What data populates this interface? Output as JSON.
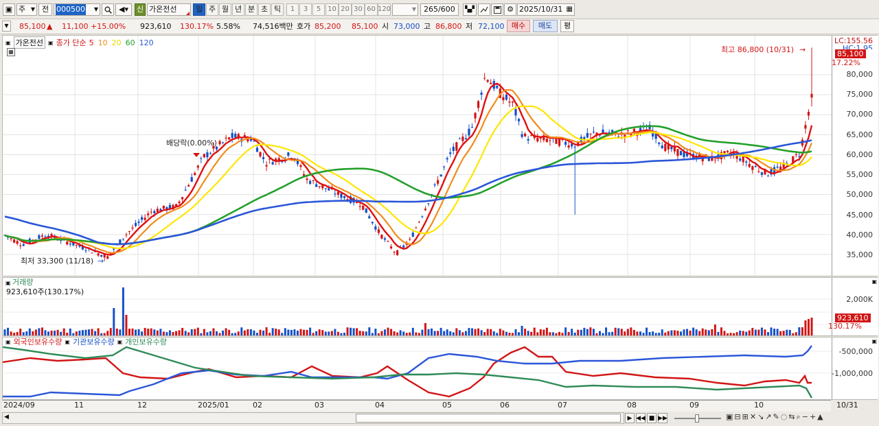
{
  "toolbar": {
    "period_type": "주",
    "jeon": "전",
    "code": "000500",
    "new_label": "신",
    "stock_name": "가온전선",
    "timeframes": [
      "일",
      "주",
      "월",
      "년",
      "분",
      "초",
      "틱"
    ],
    "minutes": [
      "1",
      "3",
      "5",
      "10",
      "20",
      "30",
      "60",
      "120"
    ],
    "count": "265",
    "count_total": "/600",
    "date": "2025/10/31"
  },
  "quote": {
    "price": "85,100",
    "change": "11,100 +15.00%",
    "volume": "923,610",
    "volume_ratio": "130.17%",
    "turnover_pct": "5.58%",
    "amount": "74,516백만",
    "bid_label": "호가",
    "bid1": "85,200",
    "bid2": "85,100",
    "open_label": "시",
    "open": "73,000",
    "high_label": "고",
    "high": "86,800",
    "low_label": "저",
    "low": "72,100",
    "buy": "매수",
    "sell": "매도",
    "eval": "평"
  },
  "price_panel": {
    "name": "가온전선",
    "ma_title": "종가 단순",
    "ma_periods": [
      {
        "label": "5",
        "color": "#e01010"
      },
      {
        "label": "10",
        "color": "#f08c1c"
      },
      {
        "label": "20",
        "color": "#e8d800"
      },
      {
        "label": "60",
        "color": "#23a02a"
      },
      {
        "label": "120",
        "color": "#2a56d8"
      }
    ],
    "max_note": "최고 86,800 (10/31)",
    "min_note": "최저 33,300 (11/18)",
    "dividend_note": "배당락(0.00%)",
    "lc": "LC:155.56",
    "hc": "HC:1.95",
    "last_price": "85,100",
    "last_pct": "17.22%",
    "y_labels": [
      "80,000",
      "75,000",
      "70,000",
      "65,000",
      "60,000",
      "55,000",
      "50,000",
      "45,000",
      "40,000",
      "35,000"
    ]
  },
  "volume_panel": {
    "title": "거래량",
    "info": "923,610주(130.17%)",
    "y_label": "2,000K",
    "last": "923,610",
    "last_pct": "130.17%"
  },
  "holding_panel": {
    "legend": [
      "외국인보유수량",
      "기관보유수량",
      "개인보유수량"
    ],
    "y_labels": [
      "-500,000",
      "-1,000,000"
    ]
  },
  "x_labels": [
    "2024/09",
    "11",
    "12",
    "2025/01",
    "02",
    "03",
    "04",
    "05",
    "06",
    "07",
    "08",
    "09",
    "10",
    "10/31"
  ],
  "colors": {
    "up": "#d21414",
    "down": "#1450c8",
    "foreign": "#d21414",
    "inst": "#2a56d8",
    "indiv": "#2e8b57"
  }
}
